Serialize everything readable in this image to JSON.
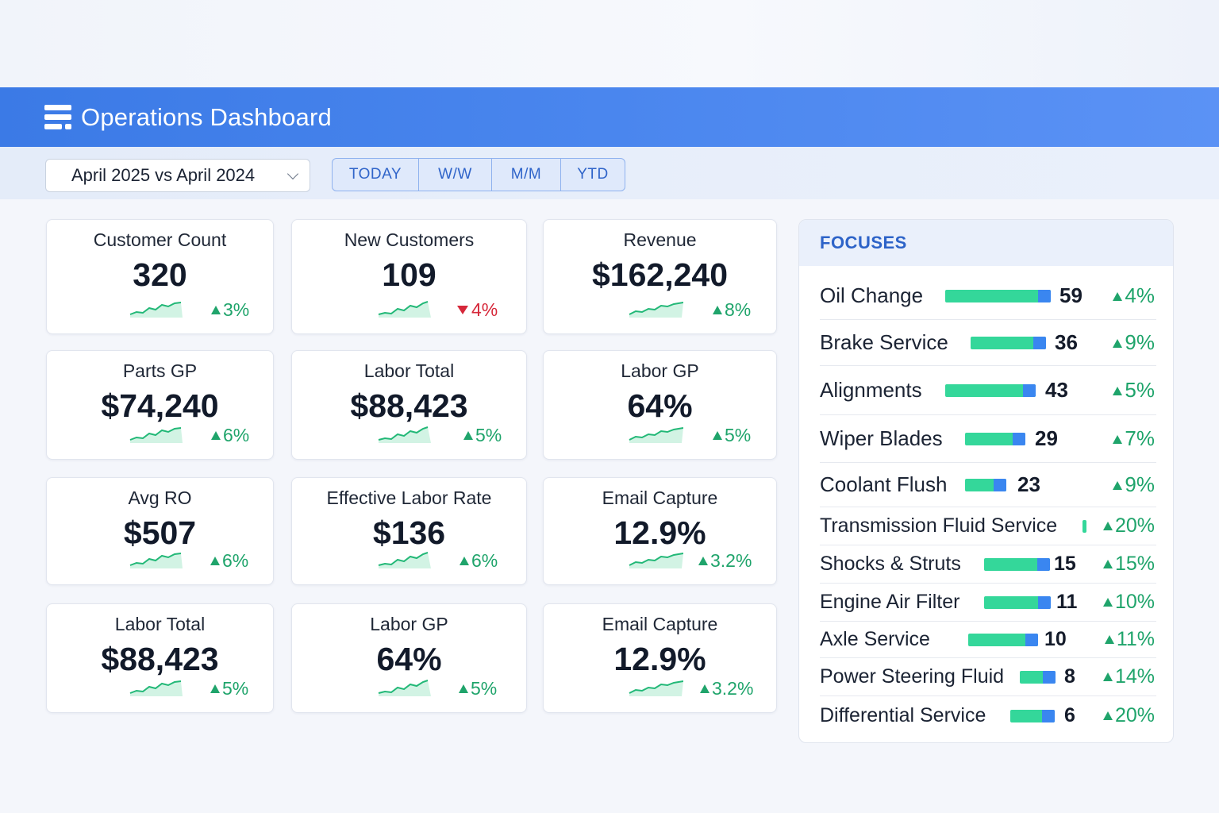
{
  "header": {
    "title": "Operations Dashboard"
  },
  "toolbar": {
    "period": "April 2025 vs April 2024",
    "ranges": [
      "TODAY",
      "W/W",
      "M/M",
      "YTD"
    ]
  },
  "colors": {
    "accent": "#3b7ae6",
    "up": "#1fa46b",
    "down": "#d6283a",
    "bar": "#34d79a",
    "bar_tip": "#3a86f0"
  },
  "kpis": [
    {
      "label": "Customer Count",
      "value": "320",
      "delta": "3%",
      "trend": "up"
    },
    {
      "label": "New Customers",
      "value": "109",
      "delta": "4%",
      "trend": "down"
    },
    {
      "label": "Revenue",
      "value": "$162,240",
      "delta": "8%",
      "trend": "up"
    },
    {
      "label": "Parts GP",
      "value": "$74,240",
      "delta": "6%",
      "trend": "up"
    },
    {
      "label": "Labor Total",
      "value": "$88,423",
      "delta": "5%",
      "trend": "up"
    },
    {
      "label": "Labor GP",
      "value": "64%",
      "delta": "5%",
      "trend": "up"
    },
    {
      "label": "Avg RO",
      "value": "$507",
      "delta": "6%",
      "trend": "up"
    },
    {
      "label": "Effective Labor Rate",
      "value": "$136",
      "delta": "6%",
      "trend": "up"
    },
    {
      "label": "Email Capture",
      "value": "12.9%",
      "delta": "3.2%",
      "trend": "up"
    },
    {
      "label": "Labor Total",
      "value": "$88,423",
      "delta": "5%",
      "trend": "up"
    },
    {
      "label": "Labor GP",
      "value": "64%",
      "delta": "5%",
      "trend": "up"
    },
    {
      "label": "Email Capture",
      "value": "12.9%",
      "delta": "3.2%",
      "trend": "up"
    }
  ],
  "focuses": {
    "title": "FOCUSES",
    "items": [
      {
        "name": "Oil Change",
        "count": "59",
        "delta": "4%"
      },
      {
        "name": "Brake Service",
        "count": "36",
        "delta": "9%"
      },
      {
        "name": "Alignments",
        "count": "43",
        "delta": "5%"
      },
      {
        "name": "Wiper Blades",
        "count": "29",
        "delta": "7%"
      },
      {
        "name": "Coolant Flush",
        "count": "23",
        "delta": "9%"
      },
      {
        "name": "Transmission Fluid Service",
        "count": "",
        "delta": "20%"
      },
      {
        "name": "Shocks & Struts",
        "count": "15",
        "delta": "15%"
      },
      {
        "name": "Engine Air Filter",
        "count": "11",
        "delta": "10%"
      },
      {
        "name": "Axle Service",
        "count": "10",
        "delta": "11%"
      },
      {
        "name": "Power Steering Fluid",
        "count": "8",
        "delta": "14%"
      },
      {
        "name": "Differential Service",
        "count": "6",
        "delta": "20%"
      }
    ]
  }
}
